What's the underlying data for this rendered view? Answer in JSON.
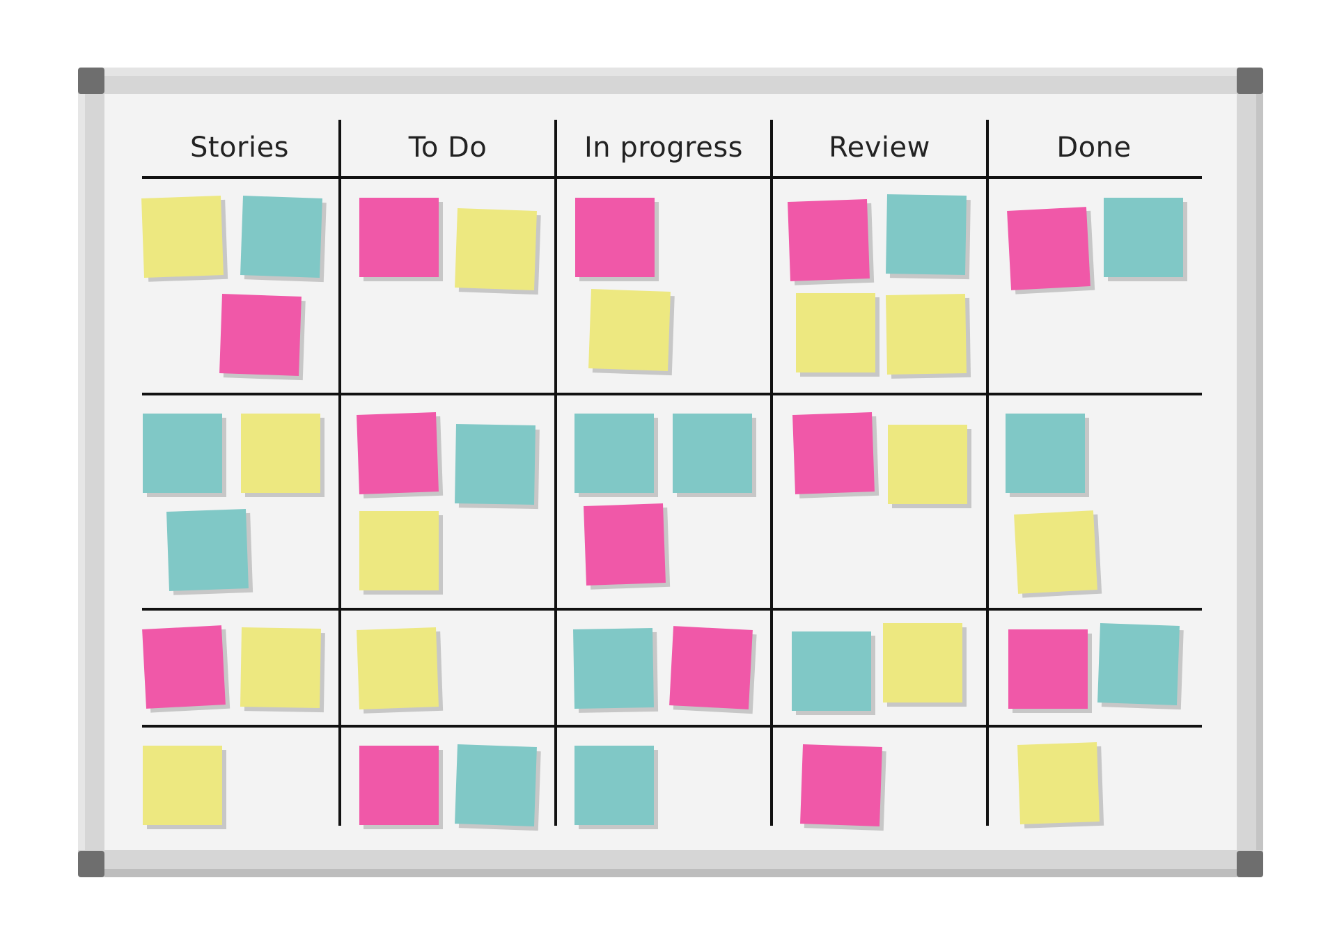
{
  "board": {
    "columns": [
      {
        "title": "Stories"
      },
      {
        "title": "To Do"
      },
      {
        "title": "In progress"
      },
      {
        "title": "Review"
      },
      {
        "title": "Done"
      }
    ],
    "note_colors": {
      "yellow": "#ede880",
      "teal": "#80c8c6",
      "pink": "#f058a8"
    }
  }
}
